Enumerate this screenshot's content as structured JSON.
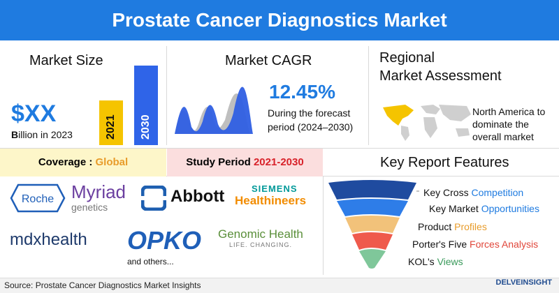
{
  "header": {
    "title": "Prostate Cancer Diagnostics Market"
  },
  "market_size": {
    "heading": "Market Size",
    "value": "$XX",
    "unit_bold": "B",
    "unit_rest": "illion in 2023",
    "bar_2021_label": "2021",
    "bar_2030_label": "2030",
    "colors": {
      "bar_2021": "#f5c400",
      "bar_2030": "#2f64e8"
    }
  },
  "cagr": {
    "heading": "Market CAGR",
    "value": "12.45%",
    "desc_line1": "During the forecast",
    "desc_line2": "period (2024–2030)"
  },
  "regional": {
    "heading_line1": "Regional",
    "heading_line2": "Market Assessment",
    "note_line1": "North America to",
    "note_line2": "dominate the",
    "note_line3": "overall market",
    "colors": {
      "highlight": "#f5c400",
      "map": "#cfcfcf"
    }
  },
  "coverage": {
    "label": "Coverage : ",
    "value": "Global",
    "bg": "#fdf6c9"
  },
  "study_period": {
    "label": "Study Period ",
    "value": "2021-2030",
    "bg": "#fbdede"
  },
  "key_features": {
    "heading": "Key Report Features",
    "items": [
      {
        "text": "Key Cross ",
        "hl": "Competition",
        "color": "#1f7be0"
      },
      {
        "text": "Key Market ",
        "hl": "Opportunities",
        "color": "#1f7be0"
      },
      {
        "text": "Product ",
        "hl": "Profiles",
        "color": "#e89c2b"
      },
      {
        "text": "Porter's Five ",
        "hl": "Forces Analysis",
        "color": "#e0463a"
      },
      {
        "text": "KOL's ",
        "hl": "Views",
        "color": "#3a9a5b"
      }
    ]
  },
  "companies": {
    "roche": "Roche",
    "myriad_1": "Myriad",
    "myriad_2": "genetics",
    "abbott": "Abbott",
    "siemens_1": "SIEMENS",
    "siemens_2": "Healthineers",
    "mdx": "mdxhealth",
    "opko": "OPKO",
    "genomic_1": "Genomic Health",
    "genomic_2": "LIFE. CHANGING.",
    "others": "and others..."
  },
  "footer": {
    "source": "Source: Prostate Cancer Diagnostics Market Insights",
    "brand": "DELVEINSIGHT"
  }
}
